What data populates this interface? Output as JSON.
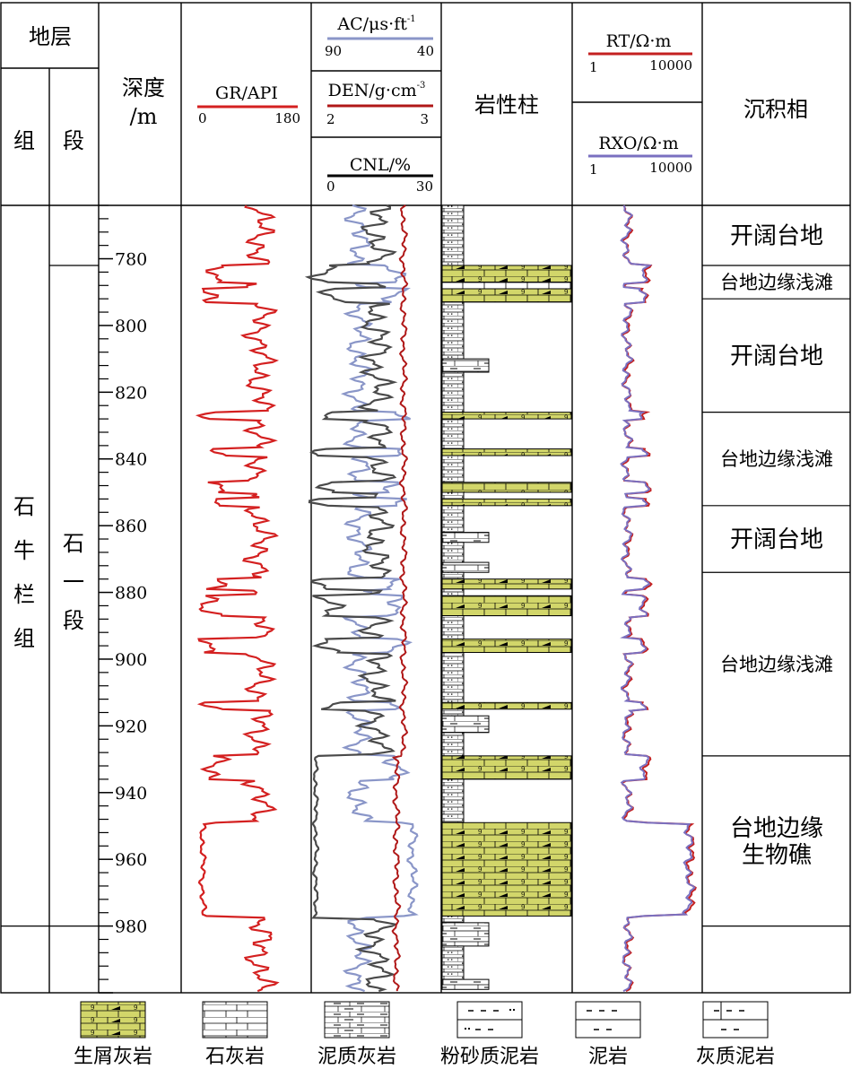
{
  "header": {
    "strata": "地层",
    "formation": "组",
    "member": "段",
    "depth_line1": "深度",
    "depth_line2": "/m",
    "lithology_column": "岩性柱",
    "facies": "沉积相"
  },
  "tracks": {
    "gr": {
      "label": "GR/API",
      "min": "0",
      "max": "180",
      "color": "#d42020"
    },
    "ac": {
      "label": "AC/μs·ft",
      "sup": "-1",
      "min": "90",
      "max": "40",
      "color": "#8a96c8"
    },
    "den": {
      "label": "DEN/g·cm",
      "sup": "-3",
      "min": "2",
      "max": "3",
      "color": "#b01818"
    },
    "cnl": {
      "label": "CNL/%",
      "min": "0",
      "max": "30",
      "color": "#4a4a4a"
    },
    "rt": {
      "label": "RT/Ω·m",
      "min": "1",
      "max": "10000",
      "color": "#c42020"
    },
    "rxo": {
      "label": "RXO/Ω·m",
      "min": "1",
      "max": "10000",
      "color": "#7a70c0"
    }
  },
  "depth_axis": {
    "top": 764,
    "bottom": 1000,
    "major_step": 20,
    "minor_step": 4,
    "labels": [
      "780",
      "800",
      "820",
      "840",
      "860",
      "880",
      "900",
      "920",
      "940",
      "960",
      "980"
    ]
  },
  "formation_name": [
    "石",
    "牛",
    "栏",
    "组"
  ],
  "member_name": [
    "石",
    "一",
    "段"
  ],
  "formation_top": 764,
  "formation_bottom": 980,
  "member_top": 782,
  "member_bottom": 980,
  "facies": [
    {
      "top": 764,
      "bottom": 782,
      "lines": [
        "开阔台地"
      ]
    },
    {
      "top": 782,
      "bottom": 792,
      "lines": [
        "台地边缘浅滩"
      ]
    },
    {
      "top": 792,
      "bottom": 826,
      "lines": [
        "开阔台地"
      ]
    },
    {
      "top": 826,
      "bottom": 854,
      "lines": [
        "台地边缘浅滩"
      ]
    },
    {
      "top": 854,
      "bottom": 874,
      "lines": [
        "开阔台地"
      ]
    },
    {
      "top": 874,
      "bottom": 929,
      "lines": [
        "台地边缘浅滩"
      ]
    },
    {
      "top": 929,
      "bottom": 980,
      "lines": [
        "台地边缘",
        "生物礁"
      ]
    }
  ],
  "lithology": [
    {
      "top": 764,
      "bottom": 782,
      "type": "siltstone_mudstone"
    },
    {
      "top": 782,
      "bottom": 787,
      "type": "bioclastic"
    },
    {
      "top": 787,
      "bottom": 789,
      "type": "limestone"
    },
    {
      "top": 789,
      "bottom": 793,
      "type": "bioclastic"
    },
    {
      "top": 793,
      "bottom": 810,
      "type": "siltstone_mudstone"
    },
    {
      "top": 810,
      "bottom": 814,
      "type": "argillaceous_limestone"
    },
    {
      "top": 814,
      "bottom": 826,
      "type": "siltstone_mudstone"
    },
    {
      "top": 826,
      "bottom": 828,
      "type": "bioclastic"
    },
    {
      "top": 828,
      "bottom": 837,
      "type": "siltstone_mudstone"
    },
    {
      "top": 837,
      "bottom": 839,
      "type": "bioclastic"
    },
    {
      "top": 839,
      "bottom": 847,
      "type": "siltstone_mudstone"
    },
    {
      "top": 847,
      "bottom": 850,
      "type": "bioclastic"
    },
    {
      "top": 850,
      "bottom": 852,
      "type": "siltstone_mudstone"
    },
    {
      "top": 852,
      "bottom": 854,
      "type": "bioclastic"
    },
    {
      "top": 854,
      "bottom": 862,
      "type": "siltstone_mudstone"
    },
    {
      "top": 862,
      "bottom": 865,
      "type": "argillaceous_limestone"
    },
    {
      "top": 865,
      "bottom": 871,
      "type": "siltstone_mudstone"
    },
    {
      "top": 871,
      "bottom": 874,
      "type": "argillaceous_limestone"
    },
    {
      "top": 874,
      "bottom": 876,
      "type": "siltstone_mudstone"
    },
    {
      "top": 876,
      "bottom": 879,
      "type": "bioclastic"
    },
    {
      "top": 879,
      "bottom": 881,
      "type": "siltstone_mudstone"
    },
    {
      "top": 881,
      "bottom": 887,
      "type": "bioclastic"
    },
    {
      "top": 887,
      "bottom": 894,
      "type": "siltstone_mudstone"
    },
    {
      "top": 894,
      "bottom": 898,
      "type": "bioclastic"
    },
    {
      "top": 898,
      "bottom": 913,
      "type": "siltstone_mudstone"
    },
    {
      "top": 913,
      "bottom": 915,
      "type": "bioclastic"
    },
    {
      "top": 915,
      "bottom": 917,
      "type": "siltstone_mudstone"
    },
    {
      "top": 917,
      "bottom": 922,
      "type": "argillaceous_limestone"
    },
    {
      "top": 922,
      "bottom": 929,
      "type": "siltstone_mudstone"
    },
    {
      "top": 929,
      "bottom": 936,
      "type": "bioclastic"
    },
    {
      "top": 936,
      "bottom": 949,
      "type": "siltstone_mudstone"
    },
    {
      "top": 949,
      "bottom": 977,
      "type": "bioclastic"
    },
    {
      "top": 977,
      "bottom": 979,
      "type": "siltstone_mudstone"
    },
    {
      "top": 979,
      "bottom": 986,
      "type": "argillaceous_limestone"
    },
    {
      "top": 986,
      "bottom": 996,
      "type": "siltstone_mudstone"
    },
    {
      "top": 996,
      "bottom": 999,
      "type": "argillaceous_limestone"
    }
  ],
  "legend": [
    {
      "key": "bioclastic",
      "label": "生屑灰岩"
    },
    {
      "key": "limestone",
      "label": "石灰岩"
    },
    {
      "key": "argillaceous_limestone",
      "label": "泥质灰岩"
    },
    {
      "key": "silty_mudstone",
      "label": "粉砂质泥岩"
    },
    {
      "key": "mudstone",
      "label": "泥岩"
    },
    {
      "key": "calcareous_mudstone",
      "label": "灰质泥岩"
    }
  ],
  "colors": {
    "bioclastic_fill": "#d2d66a",
    "frame": "#000000"
  }
}
